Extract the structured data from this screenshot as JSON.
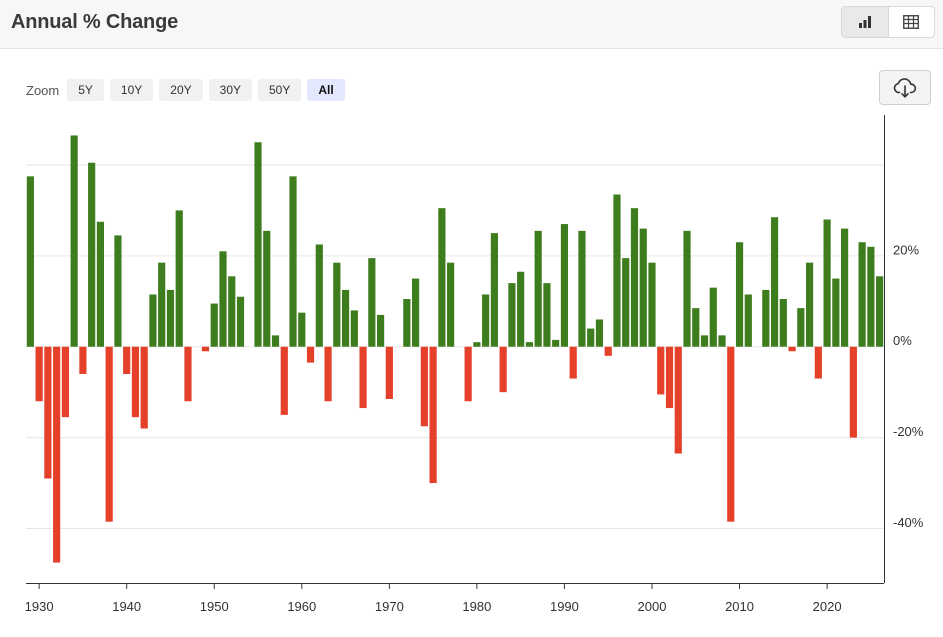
{
  "header": {
    "title": "Annual % Change"
  },
  "view_toggle": {
    "items": [
      "bar-chart-icon",
      "table-icon"
    ],
    "active": "bar-chart-icon"
  },
  "zoom": {
    "label": "Zoom",
    "options": [
      "5Y",
      "10Y",
      "20Y",
      "30Y",
      "50Y",
      "All"
    ],
    "active": "All"
  },
  "colors": {
    "positive": "#3e7d1e",
    "negative": "#e4402a",
    "grid": "#e6e6e6"
  },
  "chart_data": {
    "type": "bar",
    "title": "Annual % Change",
    "xlabel": "",
    "ylabel": "",
    "ylim": [
      -52,
      51
    ],
    "x_range": [
      1928.5,
      2026.5
    ],
    "y_ticks": [
      -40,
      -20,
      0,
      20
    ],
    "y_tick_labels": [
      "-40%",
      "-20%",
      "0%",
      "20%"
    ],
    "x_ticks": [
      1930,
      1940,
      1950,
      1960,
      1970,
      1980,
      1990,
      2000,
      2010,
      2020
    ],
    "x_tick_labels": [
      "1930",
      "1940",
      "1950",
      "1960",
      "1970",
      "1980",
      "1990",
      "2000",
      "2010",
      "2020"
    ],
    "legend": "none",
    "grid": true,
    "years": [
      1929,
      1930,
      1931,
      1932,
      1933,
      1934,
      1935,
      1936,
      1937,
      1938,
      1939,
      1940,
      1941,
      1942,
      1943,
      1944,
      1945,
      1946,
      1947,
      1948,
      1949,
      1950,
      1951,
      1952,
      1953,
      1954,
      1955,
      1956,
      1957,
      1958,
      1959,
      1960,
      1961,
      1962,
      1963,
      1964,
      1965,
      1966,
      1967,
      1968,
      1969,
      1970,
      1971,
      1972,
      1973,
      1974,
      1975,
      1976,
      1977,
      1978,
      1979,
      1980,
      1981,
      1982,
      1983,
      1984,
      1985,
      1986,
      1987,
      1988,
      1989,
      1990,
      1991,
      1992,
      1993,
      1994,
      1995,
      1996,
      1997,
      1998,
      1999,
      2000,
      2001,
      2002,
      2003,
      2004,
      2005,
      2006,
      2007,
      2008,
      2009,
      2010,
      2011,
      2012,
      2013,
      2014,
      2015,
      2016,
      2017,
      2018,
      2019,
      2020,
      2021,
      2022,
      2023,
      2024,
      2025,
      2026
    ],
    "values": [
      37.5,
      -12,
      -29,
      -47.5,
      -15.5,
      46.5,
      -6,
      40.5,
      27.5,
      -38.5,
      24.5,
      -6,
      -15.5,
      -18,
      11.5,
      18.5,
      12.5,
      30,
      -12,
      0,
      -1,
      9.5,
      21,
      15.5,
      11,
      0,
      45,
      25.5,
      2.5,
      -15,
      37.5,
      7.5,
      -3.5,
      22.5,
      -12,
      18.5,
      12.5,
      8,
      -13.5,
      19.5,
      7,
      -11.5,
      0,
      10.5,
      15,
      -17.5,
      -30,
      30.5,
      18.5,
      0,
      -12,
      1,
      11.5,
      25,
      -10,
      14,
      16.5,
      1,
      25.5,
      14,
      1.5,
      27,
      -7,
      25.5,
      4,
      6,
      -2,
      33.5,
      19.5,
      30.5,
      26,
      18.5,
      -10.5,
      -13.5,
      -23.5,
      25.5,
      8.5,
      2.5,
      13,
      2.5,
      -38.5,
      23,
      11.5,
      0,
      12.5,
      28.5,
      10.5,
      -1,
      8.5,
      18.5,
      -7,
      28,
      15,
      26,
      -20,
      23,
      22,
      15.5
    ]
  }
}
